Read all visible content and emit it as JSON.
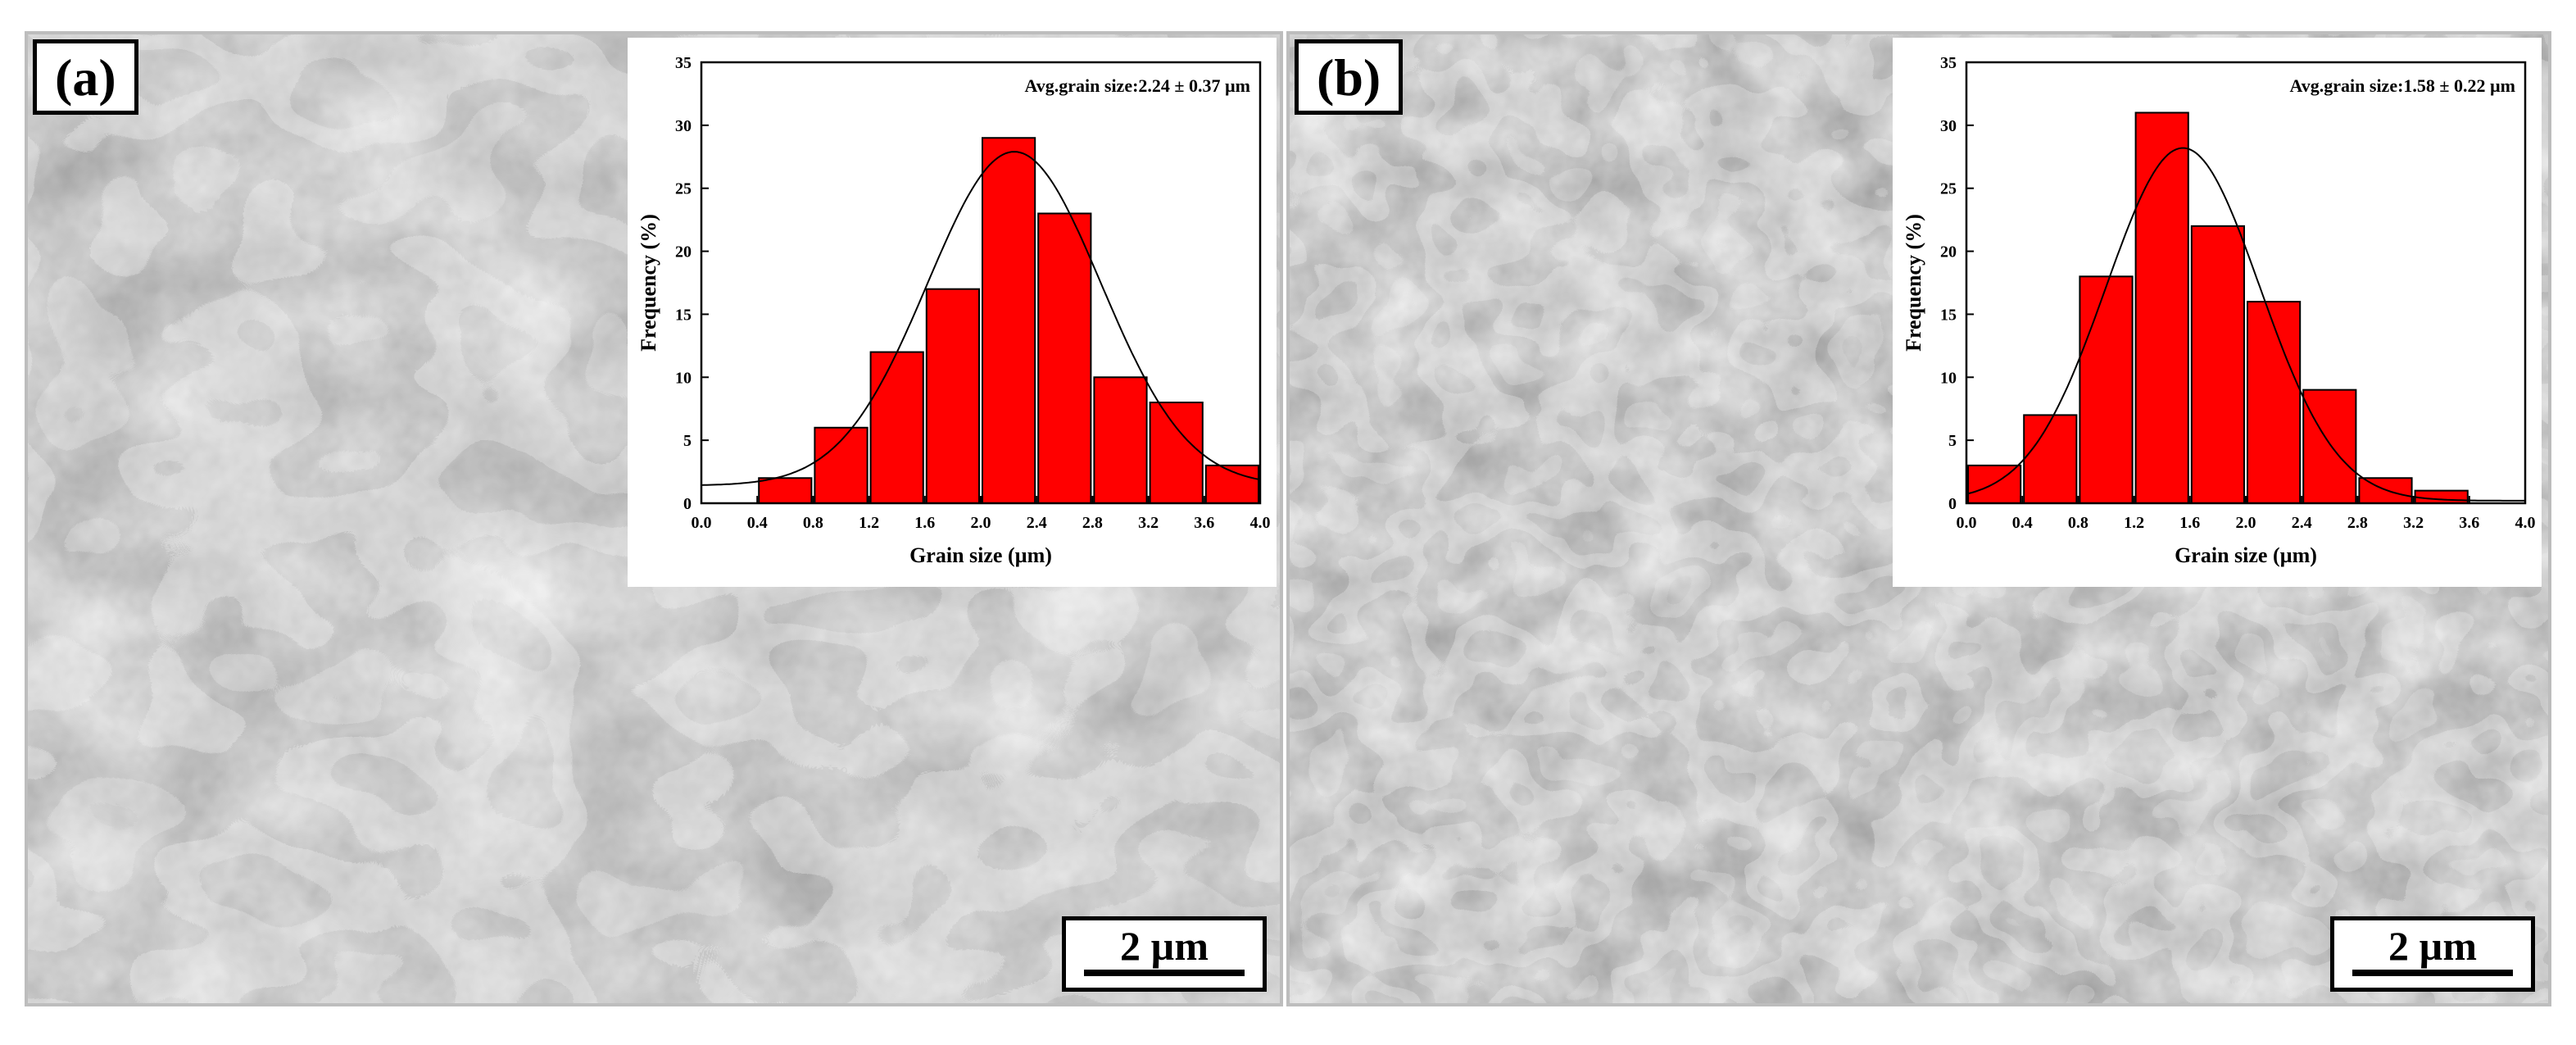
{
  "figure": {
    "panels": [
      {
        "label": "(a)",
        "scalebar": "2 µm",
        "chart_data": {
          "type": "bar",
          "annotation": "Avg.grain size:2.24 ± 0.37 µm",
          "xlabel": "Grain size (µm)",
          "ylabel": "Frequency (%)",
          "xlim": [
            0.0,
            4.0
          ],
          "ylim": [
            0,
            35
          ],
          "xticks": [
            "0.0",
            "0.4",
            "0.8",
            "1.2",
            "1.6",
            "2.0",
            "2.4",
            "2.8",
            "3.2",
            "3.6",
            "4.0"
          ],
          "yticks": [
            "0",
            "5",
            "10",
            "15",
            "20",
            "25",
            "30",
            "35"
          ],
          "bins": [
            [
              0.4,
              0.8
            ],
            [
              0.8,
              1.2
            ],
            [
              1.2,
              1.6
            ],
            [
              1.6,
              2.0
            ],
            [
              2.0,
              2.4
            ],
            [
              2.4,
              2.8
            ],
            [
              2.8,
              3.2
            ],
            [
              3.2,
              3.6
            ],
            [
              3.6,
              4.0
            ]
          ],
          "values": [
            2,
            6,
            12,
            17,
            29,
            23,
            10,
            8,
            3
          ],
          "fit": {
            "type": "gaussian",
            "mean": 2.24,
            "sigma": 0.62,
            "peak": 26.5,
            "baseline": 1.4
          },
          "bar_color": "#ff0000",
          "grid": false
        }
      },
      {
        "label": "(b)",
        "scalebar": "2 µm",
        "chart_data": {
          "type": "bar",
          "annotation": "Avg.grain size:1.58 ± 0.22 µm",
          "xlabel": "Grain size (µm)",
          "ylabel": "Frequency (%)",
          "xlim": [
            0.0,
            4.0
          ],
          "ylim": [
            0,
            35
          ],
          "xticks": [
            "0.0",
            "0.4",
            "0.8",
            "1.2",
            "1.6",
            "2.0",
            "2.4",
            "2.8",
            "3.2",
            "3.6",
            "4.0"
          ],
          "yticks": [
            "0",
            "5",
            "10",
            "15",
            "20",
            "25",
            "30",
            "35"
          ],
          "bins": [
            [
              0.0,
              0.4
            ],
            [
              0.4,
              0.8
            ],
            [
              0.8,
              1.2
            ],
            [
              1.2,
              1.6
            ],
            [
              1.6,
              2.0
            ],
            [
              2.0,
              2.4
            ],
            [
              2.4,
              2.8
            ],
            [
              2.8,
              3.2
            ],
            [
              3.2,
              3.6
            ]
          ],
          "values": [
            3,
            7,
            18,
            31,
            22,
            16,
            9,
            2,
            1
          ],
          "fit": {
            "type": "gaussian",
            "mean": 1.55,
            "sigma": 0.55,
            "peak": 28.0,
            "baseline": 0.2
          },
          "bar_color": "#ff0000",
          "grid": false
        }
      }
    ]
  }
}
